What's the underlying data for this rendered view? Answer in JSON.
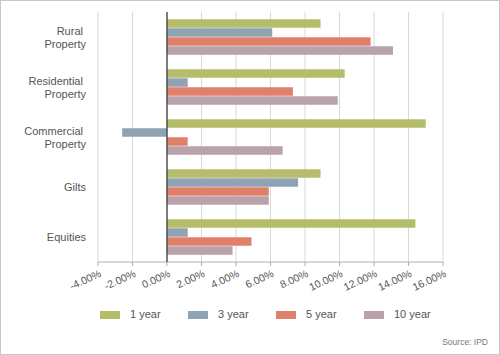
{
  "chart_data": {
    "type": "bar",
    "orientation": "horizontal",
    "grid": true,
    "legend": "bottom",
    "categories": [
      "Rural Property",
      "Residential Property",
      "Commercial Property",
      "Gilts",
      "Equities"
    ],
    "series": [
      {
        "name": "1 year",
        "color": "#b5bd6a",
        "values": [
          8.9,
          10.3,
          15.0,
          8.9,
          14.4
        ]
      },
      {
        "name": "3 year",
        "color": "#8fa3b2",
        "values": [
          6.1,
          1.2,
          -2.6,
          7.6,
          1.2
        ]
      },
      {
        "name": "5 year",
        "color": "#e0806b",
        "values": [
          11.8,
          7.3,
          1.2,
          5.9,
          4.9
        ]
      },
      {
        "name": "10 year",
        "color": "#b9a2aa",
        "values": [
          13.1,
          9.9,
          6.7,
          5.9,
          3.8
        ]
      }
    ],
    "xlim": [
      -4,
      16
    ],
    "xticks": [
      {
        "value": -4,
        "label": "-4.00%"
      },
      {
        "value": -2,
        "label": "-2.00%"
      },
      {
        "value": 0,
        "label": "0.00%"
      },
      {
        "value": 2,
        "label": "2.00%"
      },
      {
        "value": 4,
        "label": "4.00%"
      },
      {
        "value": 6,
        "label": "6.00%"
      },
      {
        "value": 8,
        "label": "8.00%"
      },
      {
        "value": 10,
        "label": "10.00%"
      },
      {
        "value": 12,
        "label": "12.00%"
      },
      {
        "value": 14,
        "label": "14.00%"
      },
      {
        "value": 16,
        "label": "16.00%"
      }
    ],
    "annotations": [
      "Source: IPD"
    ]
  }
}
